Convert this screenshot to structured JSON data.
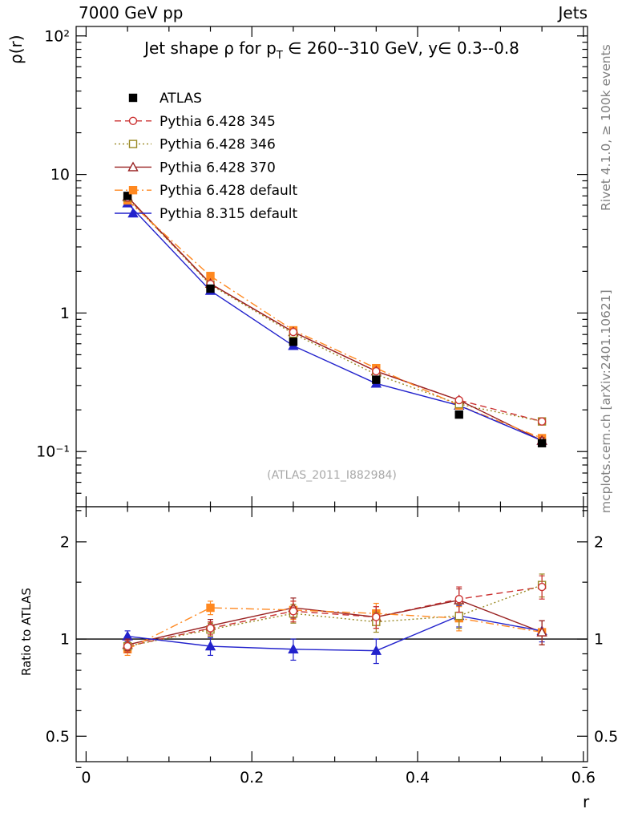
{
  "header": {
    "left": "7000 GeV pp",
    "right": "Jets"
  },
  "title": {
    "part1": "Jet shape ρ for p",
    "sub": "T",
    "part2": " ∈ 260--310 GeV, y∈ 0.3--0.8"
  },
  "watermark": "(ATLAS_2011_I882984)",
  "side_notes": {
    "top_right": "Rivet 4.1.0, ≥ 100k events",
    "bottom_right": "mcplots.cern.ch [arXiv:2401.10621]"
  },
  "chart_data": {
    "type": "line",
    "title": "Jet shape ρ for pT ∈ 260--310 GeV, y∈ 0.3--0.8",
    "xlabel": "r",
    "ylabel": "ρ(r)",
    "ratio_ylabel": "Ratio to ATLAS",
    "legend_position": "top-left-inside",
    "grid": false,
    "x": [
      0.05,
      0.15,
      0.25,
      0.35,
      0.45,
      0.55
    ],
    "xlim": [
      -0.012,
      0.605
    ],
    "x_major_ticks": [
      {
        "v": 0,
        "label": "0"
      },
      {
        "v": 0.2,
        "label": "0.2"
      },
      {
        "v": 0.4,
        "label": "0.4"
      },
      {
        "v": 0.6,
        "label": "0.6"
      }
    ],
    "x_minor_step": 0.05,
    "main_axis": {
      "scale": "log",
      "ylim": [
        0.04,
        117
      ],
      "major_ticks": [
        {
          "v": 100,
          "label": "10²"
        },
        {
          "v": 10,
          "label": "10"
        },
        {
          "v": 1,
          "label": "1"
        },
        {
          "v": 0.1,
          "label": "10⁻¹"
        }
      ]
    },
    "ratio_axis": {
      "scale": "log",
      "ylim": [
        0.417,
        2.57
      ],
      "major_ticks": [
        {
          "v": 2,
          "label": "2"
        },
        {
          "v": 1,
          "label": "1"
        },
        {
          "v": 0.5,
          "label": "0.5"
        }
      ],
      "minor_ticks": [
        0.4,
        0.6,
        0.7,
        0.8,
        0.9,
        1.5,
        2.5
      ],
      "reference_line": 1
    },
    "series": [
      {
        "name": "ATLAS",
        "color": "#000000",
        "marker": "square",
        "fill": "filled",
        "line": "none",
        "values": [
          7.0,
          1.5,
          0.62,
          0.33,
          0.185,
          0.115
        ],
        "yerr": [
          0.25,
          0.06,
          0.025,
          0.014,
          0.009,
          0.006
        ],
        "ratio": null,
        "ratio_err": null
      },
      {
        "name": "Pythia 6.428 345",
        "color": "#cc3333",
        "marker": "circle",
        "fill": "open",
        "line": "dashed",
        "values": [
          6.8,
          1.62,
          0.73,
          0.38,
          0.235,
          0.165
        ],
        "yerr": [
          0.15,
          0.04,
          0.02,
          0.012,
          0.009,
          0.007
        ],
        "ratio": [
          0.95,
          1.08,
          1.22,
          1.17,
          1.33,
          1.45
        ],
        "ratio_err": [
          0.04,
          0.05,
          0.09,
          0.09,
          0.12,
          0.12
        ]
      },
      {
        "name": "Pythia 6.428 346",
        "color": "#998822",
        "marker": "square",
        "fill": "open",
        "line": "dotted",
        "values": [
          6.8,
          1.6,
          0.71,
          0.36,
          0.22,
          0.165
        ],
        "yerr": [
          0.15,
          0.04,
          0.02,
          0.012,
          0.009,
          0.007
        ],
        "ratio": [
          0.95,
          1.07,
          1.2,
          1.13,
          1.18,
          1.47
        ],
        "ratio_err": [
          0.04,
          0.05,
          0.08,
          0.08,
          0.1,
          0.12
        ]
      },
      {
        "name": "Pythia 6.428 370",
        "color": "#992222",
        "marker": "triangle",
        "fill": "open",
        "line": "solid",
        "values": [
          6.9,
          1.63,
          0.73,
          0.38,
          0.235,
          0.12
        ],
        "yerr": [
          0.15,
          0.04,
          0.02,
          0.012,
          0.009,
          0.006
        ],
        "ratio": [
          0.96,
          1.1,
          1.25,
          1.17,
          1.32,
          1.05
        ],
        "ratio_err": [
          0.04,
          0.05,
          0.09,
          0.09,
          0.11,
          0.09
        ]
      },
      {
        "name": "Pythia 6.428 default",
        "color": "#ff8820",
        "marker": "square",
        "fill": "filled",
        "line": "dashdot",
        "values": [
          6.5,
          1.85,
          0.75,
          0.4,
          0.215,
          0.125
        ],
        "yerr": [
          0.15,
          0.05,
          0.02,
          0.013,
          0.009,
          0.006
        ],
        "ratio": [
          0.93,
          1.25,
          1.23,
          1.2,
          1.16,
          1.05
        ],
        "ratio_err": [
          0.04,
          0.06,
          0.08,
          0.09,
          0.1,
          0.09
        ]
      },
      {
        "name": "Pythia 8.315 default",
        "color": "#2222cc",
        "marker": "triangle",
        "fill": "filled",
        "line": "solid",
        "values": [
          6.2,
          1.45,
          0.58,
          0.31,
          0.215,
          0.12
        ],
        "yerr": [
          0.15,
          0.04,
          0.02,
          0.012,
          0.009,
          0.006
        ],
        "ratio": [
          1.02,
          0.95,
          0.93,
          0.92,
          1.18,
          1.06
        ],
        "ratio_err": [
          0.04,
          0.06,
          0.07,
          0.08,
          0.09,
          0.08
        ]
      }
    ]
  }
}
